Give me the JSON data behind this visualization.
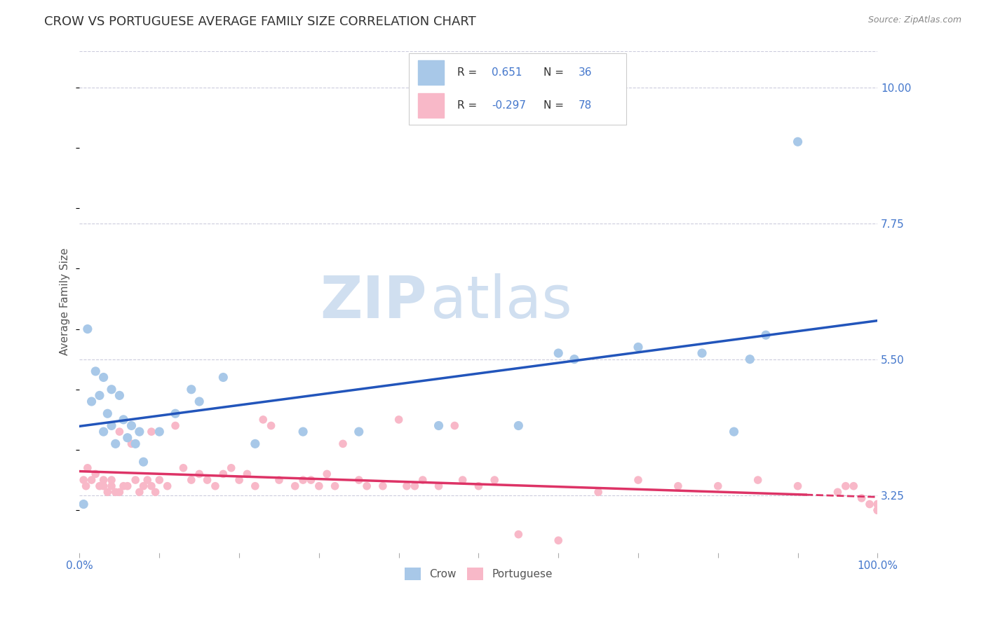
{
  "title": "CROW VS PORTUGUESE AVERAGE FAMILY SIZE CORRELATION CHART",
  "source": "Source: ZipAtlas.com",
  "ylabel": "Average Family Size",
  "xlim": [
    0.0,
    1.0
  ],
  "ylim": [
    2.3,
    10.6
  ],
  "yticks": [
    3.25,
    5.5,
    7.75,
    10.0
  ],
  "xticks": [
    0.0,
    0.1,
    0.2,
    0.3,
    0.4,
    0.5,
    0.6,
    0.7,
    0.8,
    0.9,
    1.0
  ],
  "crow_color": "#a8c8e8",
  "crow_edge_color": "#a8c8e8",
  "crow_line_color": "#2255bb",
  "portuguese_color": "#f8b8c8",
  "portuguese_edge_color": "#f8b8c8",
  "portuguese_line_color": "#dd3366",
  "crow_R": 0.651,
  "crow_N": 36,
  "portuguese_R": -0.297,
  "portuguese_N": 78,
  "crow_points_x": [
    0.005,
    0.01,
    0.015,
    0.02,
    0.025,
    0.03,
    0.03,
    0.035,
    0.04,
    0.04,
    0.045,
    0.05,
    0.055,
    0.06,
    0.065,
    0.07,
    0.075,
    0.08,
    0.1,
    0.12,
    0.14,
    0.15,
    0.18,
    0.22,
    0.28,
    0.35,
    0.45,
    0.55,
    0.6,
    0.62,
    0.7,
    0.78,
    0.82,
    0.84,
    0.86,
    0.9
  ],
  "crow_points_y": [
    3.1,
    6.0,
    4.8,
    5.3,
    4.9,
    5.2,
    4.3,
    4.6,
    4.4,
    5.0,
    4.1,
    4.9,
    4.5,
    4.2,
    4.4,
    4.1,
    4.3,
    3.8,
    4.3,
    4.6,
    5.0,
    4.8,
    5.2,
    4.1,
    4.3,
    4.3,
    4.4,
    4.4,
    5.6,
    5.5,
    5.7,
    5.6,
    4.3,
    5.5,
    5.9,
    9.1
  ],
  "portuguese_points_x": [
    0.005,
    0.008,
    0.01,
    0.015,
    0.02,
    0.025,
    0.03,
    0.03,
    0.035,
    0.04,
    0.04,
    0.045,
    0.05,
    0.05,
    0.055,
    0.06,
    0.065,
    0.07,
    0.075,
    0.08,
    0.085,
    0.09,
    0.09,
    0.095,
    0.1,
    0.11,
    0.12,
    0.13,
    0.14,
    0.15,
    0.16,
    0.17,
    0.18,
    0.19,
    0.2,
    0.21,
    0.22,
    0.23,
    0.24,
    0.25,
    0.27,
    0.28,
    0.29,
    0.3,
    0.31,
    0.32,
    0.33,
    0.35,
    0.36,
    0.38,
    0.4,
    0.41,
    0.42,
    0.43,
    0.45,
    0.47,
    0.48,
    0.5,
    0.52,
    0.55,
    0.6,
    0.65,
    0.7,
    0.75,
    0.8,
    0.85,
    0.9,
    0.95,
    0.96,
    0.97,
    0.98,
    0.99,
    1.0,
    1.0,
    1.0,
    1.0,
    1.0,
    1.0
  ],
  "portuguese_points_y": [
    3.5,
    3.4,
    3.7,
    3.5,
    3.6,
    3.4,
    3.5,
    3.4,
    3.3,
    3.5,
    3.4,
    3.3,
    3.3,
    4.3,
    3.4,
    3.4,
    4.1,
    3.5,
    3.3,
    3.4,
    3.5,
    4.3,
    3.4,
    3.3,
    3.5,
    3.4,
    4.4,
    3.7,
    3.5,
    3.6,
    3.5,
    3.4,
    3.6,
    3.7,
    3.5,
    3.6,
    3.4,
    4.5,
    4.4,
    3.5,
    3.4,
    3.5,
    3.5,
    3.4,
    3.6,
    3.4,
    4.1,
    3.5,
    3.4,
    3.4,
    4.5,
    3.4,
    3.4,
    3.5,
    3.4,
    4.4,
    3.5,
    3.4,
    3.5,
    2.6,
    2.5,
    3.3,
    3.5,
    3.4,
    3.4,
    3.5,
    3.4,
    3.3,
    3.4,
    3.4,
    3.2,
    3.1,
    3.0,
    3.1,
    3.0,
    3.1,
    3.0,
    3.1
  ],
  "background_color": "#ffffff",
  "grid_color": "#ccccdd",
  "watermark_zip": "ZIP",
  "watermark_atlas": "atlas",
  "watermark_color": "#d0dff0",
  "title_color": "#333333",
  "title_fontsize": 13,
  "axis_color": "#4477cc",
  "legend_r_color": "#4477cc",
  "legend_n_color": "#4477cc",
  "legend_text_color": "#333333"
}
